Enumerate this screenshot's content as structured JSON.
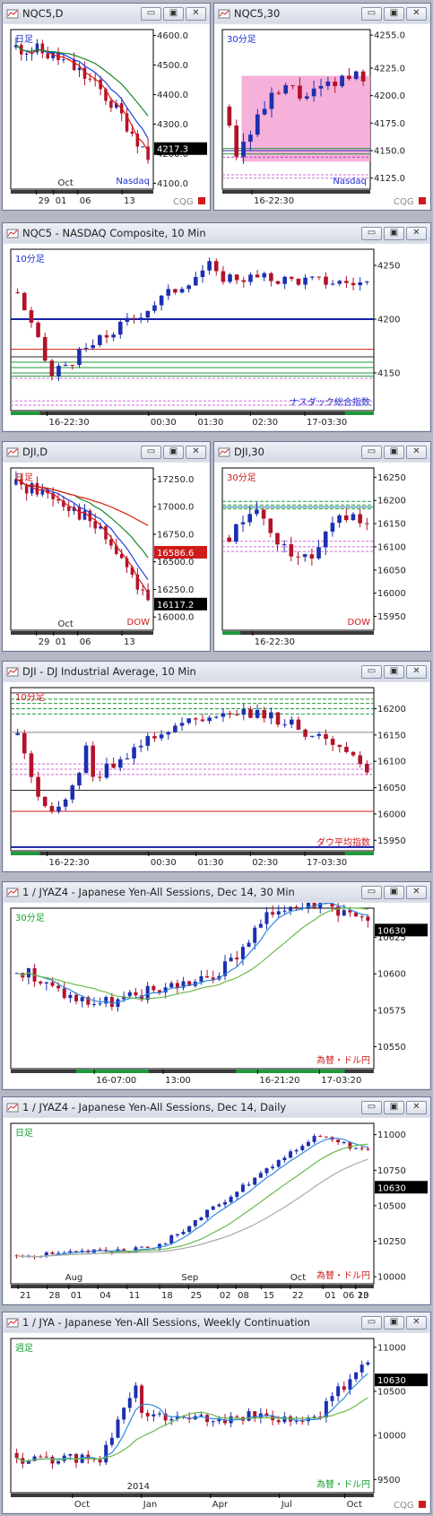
{
  "windows": [
    {
      "title": "NQC5,D",
      "label": "日足",
      "note": "Nasdaq",
      "last": "4217.3",
      "yticks": [
        "4600.0",
        "4500.0",
        "4400.0",
        "4300.0",
        "4200.0",
        "4100.0"
      ],
      "xticks": [
        "29",
        "01",
        "06",
        "13"
      ],
      "month": "Oct",
      "logo": "CQG"
    },
    {
      "title": "NQC5,30",
      "label": "30分足",
      "note": "Nasdaq",
      "yticks": [
        "4255.0",
        "4225.0",
        "4200.0",
        "4175.0",
        "4150.0",
        "4125.0"
      ],
      "xticks": [
        "16-22:30"
      ],
      "logo": "CQG"
    },
    {
      "title": "NQC5 - NASDAQ Composite, 10 Min",
      "label": "10分足",
      "note": "ナスダック総合指数",
      "yticks": [
        "4250",
        "4200",
        "4150"
      ],
      "xticks": [
        "16-22:30",
        "00:30",
        "01:30",
        "02:30",
        "17-03:30"
      ]
    },
    {
      "title": "DJI,D",
      "label": "日足",
      "note": "DOW",
      "last": "16117.2",
      "ma_label": "16586.6",
      "yticks": [
        "17250.0",
        "17000.0",
        "16750.0",
        "16500.0",
        "16250.0",
        "16000.0"
      ],
      "xticks": [
        "29",
        "01",
        "06",
        "13"
      ],
      "month": "Oct"
    },
    {
      "title": "DJI,30",
      "label": "30分足",
      "note": "DOW",
      "yticks": [
        "16250",
        "16200",
        "16150",
        "16100",
        "16050",
        "16000",
        "15950"
      ],
      "xticks": [
        "16-22:30"
      ]
    },
    {
      "title": "DJI - DJ Industrial Average, 10 Min",
      "label": "10分足",
      "note": "ダウ平均指数",
      "yticks": [
        "16200",
        "16150",
        "16100",
        "16050",
        "16000",
        "15950"
      ],
      "xticks": [
        "16-22:30",
        "00:30",
        "01:30",
        "02:30",
        "17-03:30"
      ]
    },
    {
      "title": "1 / JYAZ4 - Japanese Yen-All Sessions, Dec 14, 30 Min",
      "label": "30分足",
      "note": "為替・ドル円",
      "last": "10630",
      "yticks": [
        "10625",
        "10600",
        "10575",
        "10550"
      ],
      "xticks": [
        "16-07:00",
        "13:00",
        "16-21:20",
        "17-03:20"
      ]
    },
    {
      "title": "1 / JYAZ4 - Japanese Yen-All Sessions, Dec 14, Daily",
      "label": "日足",
      "note": "為替・ドル円",
      "last": "10630",
      "yticks": [
        "11000",
        "10750",
        "10500",
        "10250",
        "10000"
      ],
      "xticks": [
        "21",
        "28",
        "01",
        "04",
        "11",
        "18",
        "25",
        "02",
        "08",
        "15",
        "22",
        "01",
        "06",
        "13",
        "20"
      ],
      "months": [
        "Aug",
        "Sep",
        "Oct"
      ]
    },
    {
      "title": "1 / JYA - Japanese Yen-All Sessions, Weekly Continuation",
      "label": "週足",
      "note": "為替・ドル円",
      "last": "10630",
      "yticks": [
        "11000",
        "10500",
        "10000",
        "9500"
      ],
      "xticks": [
        "Oct",
        "Jan",
        "Apr",
        "Jul",
        "Oct"
      ],
      "year": "2014",
      "logo": "CQG"
    }
  ],
  "buttons": {
    "minimize": "▭",
    "restore": "▣",
    "close": "✕"
  },
  "colors": {
    "up": "#1c2fb0",
    "down": "#b3122a",
    "zone": "#f4a3d3",
    "green": "#1e9a3a",
    "label_blue": "#1f2fd0",
    "label_red": "#d01a1a",
    "label_green": "#16a02f"
  },
  "chart_data": [
    {
      "type": "candlestick",
      "name": "NQC5 Daily",
      "ylim": [
        4080,
        4620
      ],
      "x": [
        "29",
        "01",
        "06",
        "13"
      ],
      "last": 4217.3
    },
    {
      "type": "candlestick",
      "name": "NQC5 30 Min",
      "ylim": [
        4115,
        4260
      ],
      "x": [
        "16-22:30"
      ]
    },
    {
      "type": "candlestick",
      "name": "NQC5 10 Min",
      "ylim": [
        4115,
        4265
      ],
      "x": [
        "16-22:30",
        "00:30",
        "01:30",
        "02:30",
        "17-03:30"
      ]
    },
    {
      "type": "candlestick",
      "name": "DJI Daily",
      "ylim": [
        15880,
        17350
      ],
      "x": [
        "29",
        "01",
        "06",
        "13"
      ],
      "last": 16117.2,
      "ma": 16586.6
    },
    {
      "type": "candlestick",
      "name": "DJI 30 Min",
      "ylim": [
        15920,
        16270
      ],
      "x": [
        "16-22:30"
      ]
    },
    {
      "type": "candlestick",
      "name": "DJI 10 Min",
      "ylim": [
        15930,
        16240
      ],
      "x": [
        "16-22:30",
        "00:30",
        "01:30",
        "02:30",
        "17-03:30"
      ]
    },
    {
      "type": "candlestick",
      "name": "JYAZ4 30 Min",
      "ylim": [
        10535,
        10645
      ],
      "last": 10630
    },
    {
      "type": "candlestick",
      "name": "JYAZ4 Daily",
      "ylim": [
        9950,
        11080
      ],
      "last": 10630
    },
    {
      "type": "candlestick",
      "name": "JYA Weekly",
      "ylim": [
        9350,
        11100
      ],
      "last": 10630
    }
  ]
}
